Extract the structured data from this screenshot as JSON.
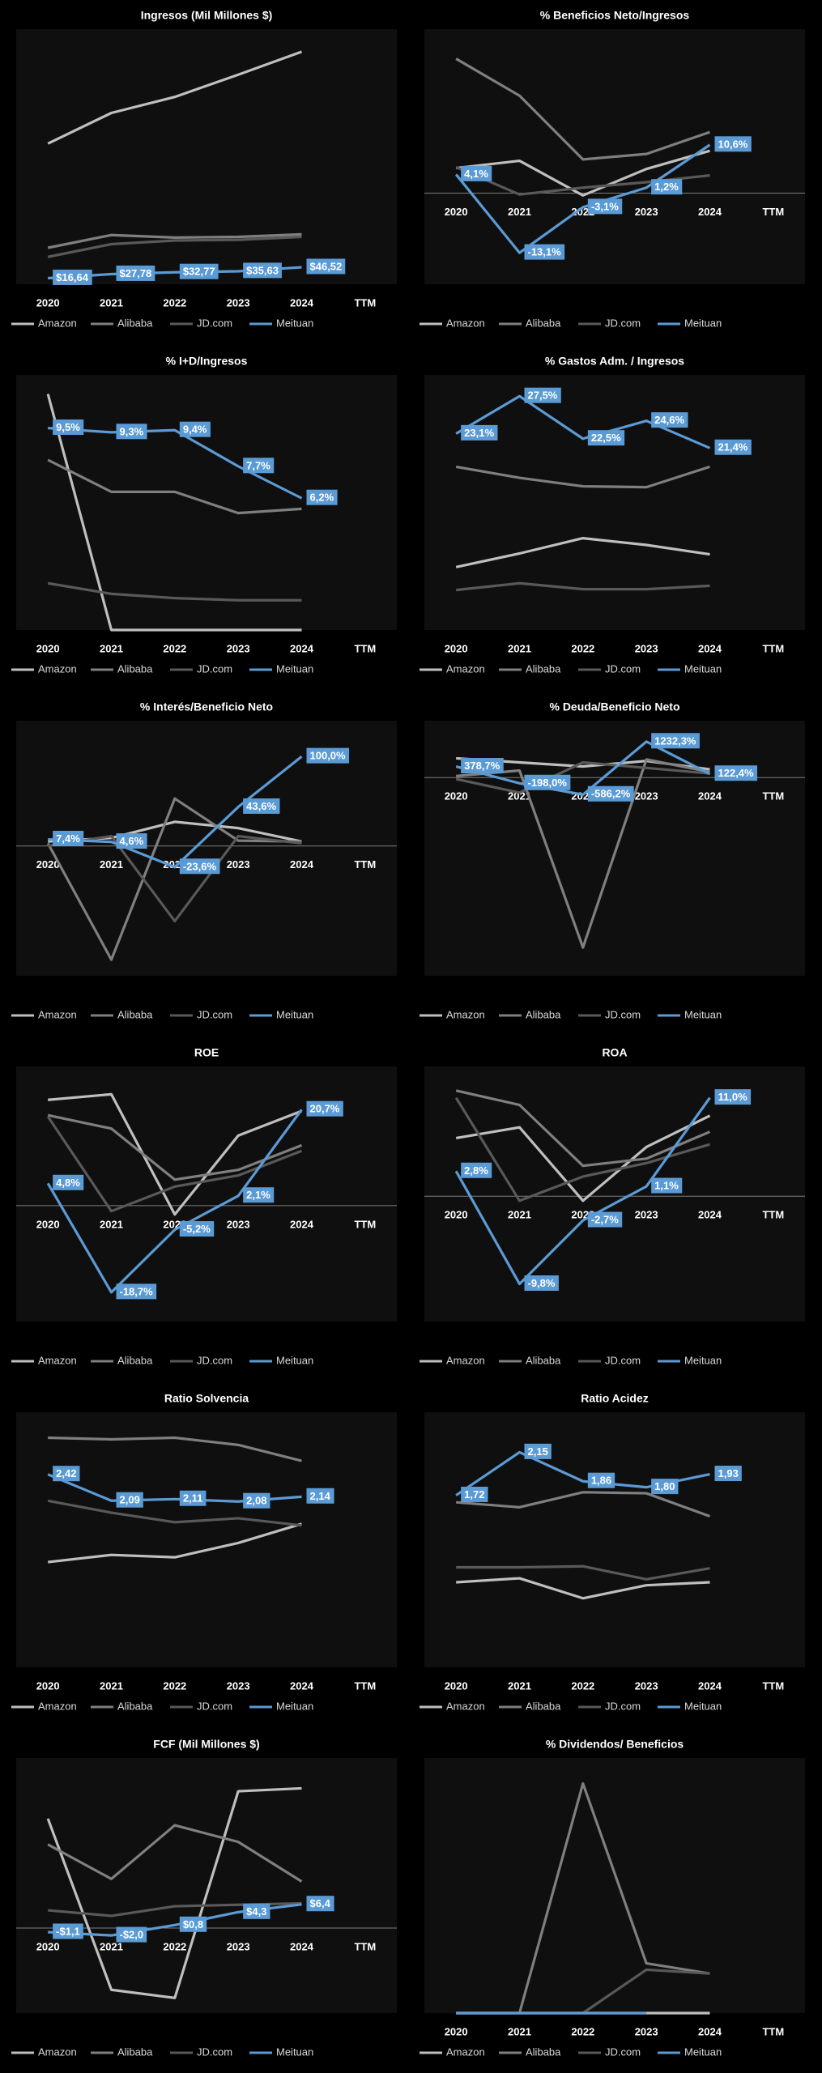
{
  "chart_data": [
    {
      "type": "line",
      "title": "Ingresos (Mil Millones $)",
      "categories": [
        "2020",
        "2021",
        "2022",
        "2023",
        "2024",
        "TTM"
      ],
      "ylim": [
        0,
        700
      ],
      "series": [
        {
          "name": "Amazon",
          "color": "#bfbfbf",
          "values": [
            386,
            470,
            514,
            575,
            638,
            null
          ]
        },
        {
          "name": "Alibaba",
          "color": "#7f7f7f",
          "values": [
            100,
            135,
            128,
            130,
            137,
            null
          ]
        },
        {
          "name": "JD.com",
          "color": "#595959",
          "values": [
            75,
            110,
            120,
            122,
            130,
            null
          ]
        },
        {
          "name": "Meituan",
          "color": "#5b9bd5",
          "values": [
            16.64,
            27.78,
            32.77,
            35.63,
            46.52,
            null
          ],
          "value_labels": [
            "$16,64",
            "$27,78",
            "$32,77",
            "$35,63",
            "$46,52",
            null
          ]
        }
      ]
    },
    {
      "type": "line",
      "title": "% Beneficios Neto/Ingresos",
      "categories": [
        "2020",
        "2021",
        "2022",
        "2023",
        "2024",
        "TTM"
      ],
      "ylim": [
        -20,
        36
      ],
      "series": [
        {
          "name": "Amazon",
          "color": "#bfbfbf",
          "values": [
            5.5,
            7.1,
            -0.5,
            5.3,
            9.3,
            null
          ]
        },
        {
          "name": "Alibaba",
          "color": "#7f7f7f",
          "values": [
            29.5,
            21.4,
            7.4,
            8.6,
            13.4,
            null
          ]
        },
        {
          "name": "JD.com",
          "color": "#595959",
          "values": [
            5.7,
            -0.3,
            1.2,
            2.4,
            3.9,
            null
          ]
        },
        {
          "name": "Meituan",
          "color": "#5b9bd5",
          "values": [
            4.1,
            -13.1,
            -3.1,
            1.2,
            10.6,
            null
          ],
          "value_labels": [
            "4,1%",
            "-13,1%",
            "-3,1%",
            "1,2%",
            "10,6%",
            null
          ]
        }
      ]
    },
    {
      "type": "line",
      "title": "% I+D/Ingresos",
      "categories": [
        "2020",
        "2021",
        "2022",
        "2023",
        "2024",
        "TTM"
      ],
      "ylim": [
        0,
        12
      ],
      "series": [
        {
          "name": "Amazon",
          "color": "#bfbfbf",
          "values": [
            11.1,
            0,
            0,
            0,
            0,
            null
          ]
        },
        {
          "name": "Alibaba",
          "color": "#7f7f7f",
          "values": [
            8.0,
            6.5,
            6.5,
            5.5,
            5.7,
            null
          ]
        },
        {
          "name": "JD.com",
          "color": "#595959",
          "values": [
            2.2,
            1.7,
            1.5,
            1.4,
            1.4,
            null
          ]
        },
        {
          "name": "Meituan",
          "color": "#5b9bd5",
          "values": [
            9.5,
            9.3,
            9.4,
            7.7,
            6.2,
            null
          ],
          "value_labels": [
            "9,5%",
            "9,3%",
            "9,4%",
            "7,7%",
            "6,2%",
            null
          ]
        }
      ]
    },
    {
      "type": "line",
      "title": "% Gastos Adm. / Ingresos",
      "categories": [
        "2020",
        "2021",
        "2022",
        "2023",
        "2024",
        "TTM"
      ],
      "ylim": [
        0,
        30
      ],
      "series": [
        {
          "name": "Amazon",
          "color": "#bfbfbf",
          "values": [
            7.4,
            9.0,
            10.8,
            10.0,
            8.9,
            null
          ]
        },
        {
          "name": "Alibaba",
          "color": "#7f7f7f",
          "values": [
            19.2,
            17.9,
            16.9,
            16.8,
            19.2,
            null
          ]
        },
        {
          "name": "JD.com",
          "color": "#595959",
          "values": [
            4.7,
            5.5,
            4.8,
            4.8,
            5.2,
            null
          ]
        },
        {
          "name": "Meituan",
          "color": "#5b9bd5",
          "values": [
            23.1,
            27.5,
            22.5,
            24.6,
            21.4,
            null
          ],
          "value_labels": [
            "23,1%",
            "27,5%",
            "22,5%",
            "24,6%",
            "21,4%",
            null
          ]
        }
      ]
    },
    {
      "type": "line",
      "title": "% Interés/Beneficio Neto",
      "categories": [
        "2020",
        "2021",
        "2022",
        "2023",
        "2024",
        "TTM"
      ],
      "ylim": [
        -145,
        140
      ],
      "series": [
        {
          "name": "Amazon",
          "color": "#bfbfbf",
          "values": [
            5,
            9,
            27,
            20,
            5,
            null
          ]
        },
        {
          "name": "Alibaba",
          "color": "#7f7f7f",
          "values": [
            3,
            -127,
            53,
            6,
            5,
            null
          ]
        },
        {
          "name": "JD.com",
          "color": "#595959",
          "values": [
            0,
            11,
            -84,
            11,
            3,
            null
          ]
        },
        {
          "name": "Meituan",
          "color": "#5b9bd5",
          "values": [
            7.4,
            4.6,
            -23.6,
            43.6,
            100.0,
            null
          ],
          "value_labels": [
            "7,4%",
            "4,6%",
            "-23,6%",
            "43,6%",
            "100,0%",
            null
          ]
        }
      ]
    },
    {
      "type": "line",
      "title": "% Deuda/Beneficio Neto",
      "categories": [
        "2020",
        "2021",
        "2022",
        "2023",
        "2024",
        "TTM"
      ],
      "ylim": [
        -6800,
        1950
      ],
      "series": [
        {
          "name": "Amazon",
          "color": "#bfbfbf",
          "values": [
            660,
            520,
            380,
            570,
            280,
            null
          ]
        },
        {
          "name": "Alibaba",
          "color": "#7f7f7f",
          "values": [
            50,
            240,
            -5830,
            620,
            190,
            null
          ]
        },
        {
          "name": "JD.com",
          "color": "#595959",
          "values": [
            -50,
            -520,
            520,
            330,
            140,
            null
          ]
        },
        {
          "name": "Meituan",
          "color": "#5b9bd5",
          "values": [
            378.7,
            -198.0,
            -586.2,
            1232.3,
            122.4,
            null
          ],
          "value_labels": [
            "378,7%",
            "-198,0%",
            "-586,2%",
            "1232,3%",
            "122,4%",
            null
          ]
        }
      ]
    },
    {
      "type": "line",
      "title": "ROE",
      "categories": [
        "2020",
        "2021",
        "2022",
        "2023",
        "2024",
        "TTM"
      ],
      "ylim": [
        -25,
        30
      ],
      "series": [
        {
          "name": "Amazon",
          "color": "#bfbfbf",
          "values": [
            22.8,
            24.0,
            -1.9,
            15.1,
            20.4,
            null
          ]
        },
        {
          "name": "Alibaba",
          "color": "#7f7f7f",
          "values": [
            19.5,
            16.6,
            5.6,
            7.7,
            13,
            null
          ]
        },
        {
          "name": "JD.com",
          "color": "#595959",
          "values": [
            19.2,
            -1.2,
            4.1,
            6.5,
            11.8,
            null
          ]
        },
        {
          "name": "Meituan",
          "color": "#5b9bd5",
          "values": [
            4.8,
            -18.7,
            -5.2,
            2.1,
            20.7,
            null
          ],
          "value_labels": [
            "4,8%",
            "-18,7%",
            "-5,2%",
            "2,1%",
            "20,7%",
            null
          ]
        }
      ]
    },
    {
      "type": "line",
      "title": "ROA",
      "categories": [
        "2020",
        "2021",
        "2022",
        "2023",
        "2024",
        "TTM"
      ],
      "ylim": [
        -14,
        14.5
      ],
      "series": [
        {
          "name": "Amazon",
          "color": "#bfbfbf",
          "values": [
            6.5,
            7.7,
            -0.5,
            5.5,
            9.0,
            null
          ]
        },
        {
          "name": "Alibaba",
          "color": "#7f7f7f",
          "values": [
            11.8,
            10.2,
            3.4,
            4.2,
            7.2,
            null
          ]
        },
        {
          "name": "JD.com",
          "color": "#595959",
          "values": [
            11,
            -0.5,
            2.2,
            3.7,
            5.8,
            null
          ]
        },
        {
          "name": "Meituan",
          "color": "#5b9bd5",
          "values": [
            2.8,
            -9.8,
            -2.7,
            1.1,
            11.0,
            null
          ],
          "value_labels": [
            "2,8%",
            "-9,8%",
            "-2,7%",
            "1,1%",
            "11,0%",
            null
          ]
        }
      ]
    },
    {
      "type": "line",
      "title": "Ratio Solvencia",
      "categories": [
        "2020",
        "2021",
        "2022",
        "2023",
        "2024",
        "TTM"
      ],
      "ylim": [
        0,
        3.2
      ],
      "series": [
        {
          "name": "Amazon",
          "color": "#bfbfbf",
          "values": [
            1.32,
            1.41,
            1.38,
            1.56,
            1.8,
            null
          ]
        },
        {
          "name": "Alibaba",
          "color": "#7f7f7f",
          "values": [
            2.88,
            2.86,
            2.88,
            2.79,
            2.59,
            null
          ]
        },
        {
          "name": "JD.com",
          "color": "#595959",
          "values": [
            2.09,
            1.94,
            1.82,
            1.87,
            1.78,
            null
          ]
        },
        {
          "name": "Meituan",
          "color": "#5b9bd5",
          "values": [
            2.42,
            2.09,
            2.11,
            2.08,
            2.14,
            null
          ],
          "value_labels": [
            "2,42",
            "2,09",
            "2,11",
            "2,08",
            "2,14",
            null
          ]
        }
      ]
    },
    {
      "type": "line",
      "title": "Ratio Acidez",
      "categories": [
        "2020",
        "2021",
        "2022",
        "2023",
        "2024",
        "TTM"
      ],
      "ylim": [
        0,
        2.55
      ],
      "series": [
        {
          "name": "Amazon",
          "color": "#bfbfbf",
          "values": [
            0.85,
            0.89,
            0.69,
            0.82,
            0.85,
            null
          ]
        },
        {
          "name": "Alibaba",
          "color": "#7f7f7f",
          "values": [
            1.65,
            1.6,
            1.75,
            1.74,
            1.51,
            null
          ]
        },
        {
          "name": "JD.com",
          "color": "#595959",
          "values": [
            1.0,
            1.0,
            1.01,
            0.88,
            0.99,
            null
          ]
        },
        {
          "name": "Meituan",
          "color": "#5b9bd5",
          "values": [
            1.72,
            2.15,
            1.86,
            1.8,
            1.93,
            null
          ],
          "value_labels": [
            "1,72",
            "2,15",
            "1,86",
            "1,80",
            "1,93",
            null
          ]
        }
      ]
    },
    {
      "type": "line",
      "title": "FCF (Mil Millones $)",
      "categories": [
        "2020",
        "2021",
        "2022",
        "2023",
        "2024",
        "TTM"
      ],
      "ylim": [
        -23,
        46
      ],
      "series": [
        {
          "name": "Amazon",
          "color": "#bfbfbf",
          "values": [
            29.6,
            -16.7,
            -18.9,
            37,
            37.8,
            null
          ]
        },
        {
          "name": "Alibaba",
          "color": "#7f7f7f",
          "values": [
            22.6,
            13.3,
            27.8,
            23.3,
            12.6,
            null
          ]
        },
        {
          "name": "JD.com",
          "color": "#595959",
          "values": [
            4.8,
            3.3,
            5.9,
            6.3,
            6.7,
            null
          ]
        },
        {
          "name": "Meituan",
          "color": "#5b9bd5",
          "values": [
            -1.1,
            -2.0,
            0.8,
            4.3,
            6.4,
            null
          ],
          "value_labels": [
            "-$1,1",
            "-$2,0",
            "$0,8",
            "$4,3",
            "$6,4",
            null
          ]
        }
      ]
    },
    {
      "type": "line",
      "title": "% Dividendos/ Beneficios",
      "categories": [
        "2020",
        "2021",
        "2022",
        "2023",
        "2024",
        "TTM"
      ],
      "ylim": [
        0,
        200
      ],
      "series": [
        {
          "name": "Amazon",
          "color": "#bfbfbf",
          "values": [
            0,
            0,
            0,
            0,
            0,
            null
          ]
        },
        {
          "name": "Alibaba",
          "color": "#7f7f7f",
          "values": [
            0,
            0,
            180,
            39,
            31,
            null
          ]
        },
        {
          "name": "JD.com",
          "color": "#595959",
          "values": [
            0,
            0,
            0,
            34,
            31,
            null
          ]
        },
        {
          "name": "Meituan",
          "color": "#5b9bd5",
          "values": [
            0,
            0,
            0,
            0,
            null,
            null
          ]
        }
      ]
    }
  ]
}
